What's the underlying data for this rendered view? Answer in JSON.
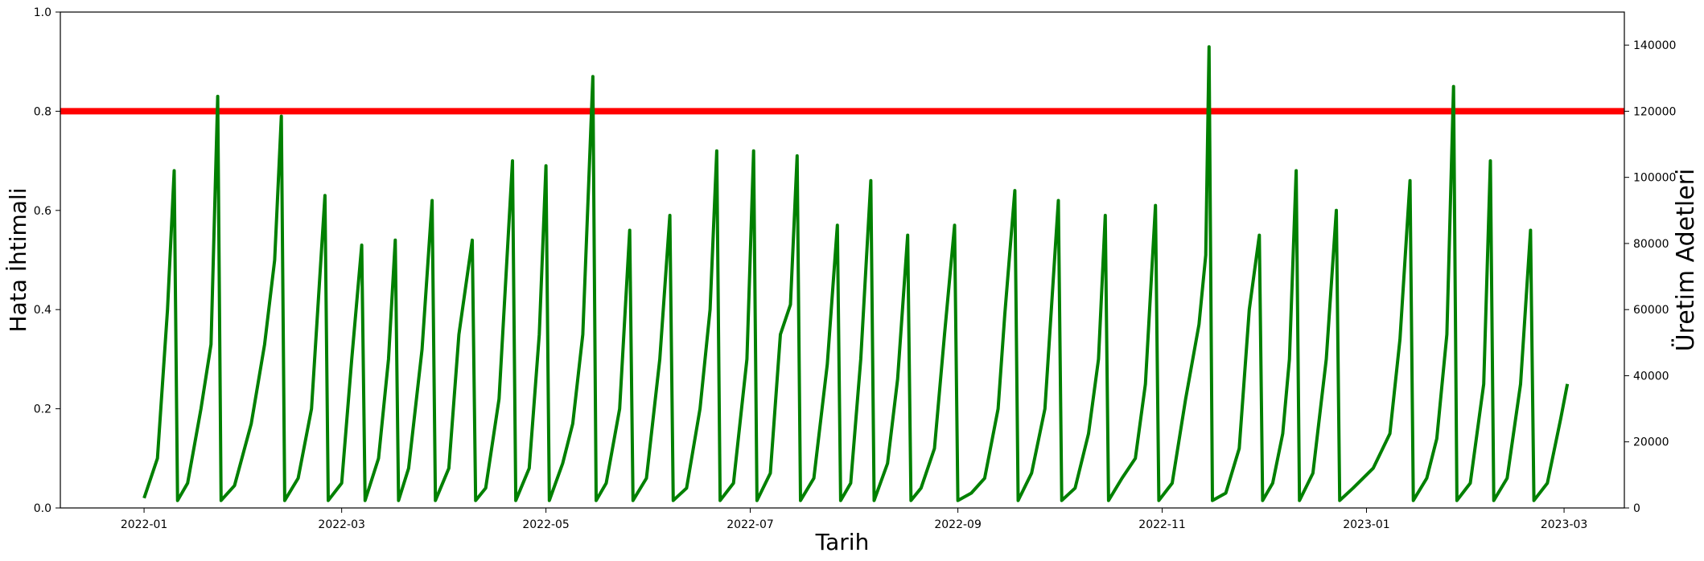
{
  "chart_data": {
    "type": "line",
    "xlabel": "Tarih",
    "ylabel": "Hata İhtimali",
    "y2label": "Üretim Adetleri",
    "xlim": [
      "2021-12-07",
      "2023-03-19"
    ],
    "ylim": [
      0,
      1.0
    ],
    "y2lim": [
      0,
      150000
    ],
    "xticks": [
      "2022-01",
      "2022-03",
      "2022-05",
      "2022-07",
      "2022-09",
      "2022-11",
      "2023-01",
      "2023-03"
    ],
    "yticks": [
      "0.0",
      "0.2",
      "0.4",
      "0.6",
      "0.8",
      "1.0"
    ],
    "y2ticks": [
      "0",
      "20000",
      "40000",
      "60000",
      "80000",
      "100000",
      "120000",
      "140000"
    ],
    "grid": false,
    "legend": "none",
    "threshold": {
      "value": 0.8,
      "color": "#ff0000"
    },
    "series": [
      {
        "color": "#008000",
        "points": [
          [
            "2022-01-01",
            0.02
          ],
          [
            "2022-01-05",
            0.1
          ],
          [
            "2022-01-08",
            0.4
          ],
          [
            "2022-01-10",
            0.68
          ],
          [
            "2022-01-11",
            0.015
          ],
          [
            "2022-01-14",
            0.05
          ],
          [
            "2022-01-18",
            0.2
          ],
          [
            "2022-01-21",
            0.33
          ],
          [
            "2022-01-23",
            0.83
          ],
          [
            "2022-01-24",
            0.015
          ],
          [
            "2022-01-28",
            0.045
          ],
          [
            "2022-02-02",
            0.17
          ],
          [
            "2022-02-06",
            0.33
          ],
          [
            "2022-02-09",
            0.5
          ],
          [
            "2022-02-11",
            0.79
          ],
          [
            "2022-02-12",
            0.015
          ],
          [
            "2022-02-16",
            0.06
          ],
          [
            "2022-02-20",
            0.2
          ],
          [
            "2022-02-24",
            0.63
          ],
          [
            "2022-02-25",
            0.015
          ],
          [
            "2022-03-01",
            0.05
          ],
          [
            "2022-03-04",
            0.3
          ],
          [
            "2022-03-07",
            0.53
          ],
          [
            "2022-03-08",
            0.015
          ],
          [
            "2022-03-12",
            0.1
          ],
          [
            "2022-03-15",
            0.3
          ],
          [
            "2022-03-17",
            0.54
          ],
          [
            "2022-03-18",
            0.015
          ],
          [
            "2022-03-21",
            0.08
          ],
          [
            "2022-03-25",
            0.32
          ],
          [
            "2022-03-28",
            0.62
          ],
          [
            "2022-03-29",
            0.015
          ],
          [
            "2022-04-02",
            0.08
          ],
          [
            "2022-04-05",
            0.35
          ],
          [
            "2022-04-09",
            0.54
          ],
          [
            "2022-04-10",
            0.015
          ],
          [
            "2022-04-13",
            0.04
          ],
          [
            "2022-04-17",
            0.22
          ],
          [
            "2022-04-21",
            0.7
          ],
          [
            "2022-04-22",
            0.015
          ],
          [
            "2022-04-26",
            0.08
          ],
          [
            "2022-04-29",
            0.35
          ],
          [
            "2022-05-01",
            0.69
          ],
          [
            "2022-05-02",
            0.015
          ],
          [
            "2022-05-06",
            0.09
          ],
          [
            "2022-05-09",
            0.17
          ],
          [
            "2022-05-12",
            0.35
          ],
          [
            "2022-05-15",
            0.87
          ],
          [
            "2022-05-16",
            0.015
          ],
          [
            "2022-05-19",
            0.05
          ],
          [
            "2022-05-23",
            0.2
          ],
          [
            "2022-05-26",
            0.56
          ],
          [
            "2022-05-27",
            0.015
          ],
          [
            "2022-05-31",
            0.06
          ],
          [
            "2022-06-04",
            0.3
          ],
          [
            "2022-06-07",
            0.59
          ],
          [
            "2022-06-08",
            0.015
          ],
          [
            "2022-06-12",
            0.04
          ],
          [
            "2022-06-16",
            0.2
          ],
          [
            "2022-06-19",
            0.4
          ],
          [
            "2022-06-21",
            0.72
          ],
          [
            "2022-06-22",
            0.015
          ],
          [
            "2022-06-26",
            0.05
          ],
          [
            "2022-06-30",
            0.3
          ],
          [
            "2022-07-02",
            0.72
          ],
          [
            "2022-07-03",
            0.015
          ],
          [
            "2022-07-07",
            0.07
          ],
          [
            "2022-07-10",
            0.35
          ],
          [
            "2022-07-13",
            0.41
          ],
          [
            "2022-07-15",
            0.71
          ],
          [
            "2022-07-16",
            0.015
          ],
          [
            "2022-07-20",
            0.06
          ],
          [
            "2022-07-24",
            0.29
          ],
          [
            "2022-07-27",
            0.57
          ],
          [
            "2022-07-28",
            0.015
          ],
          [
            "2022-07-31",
            0.05
          ],
          [
            "2022-08-03",
            0.3
          ],
          [
            "2022-08-06",
            0.66
          ],
          [
            "2022-08-07",
            0.015
          ],
          [
            "2022-08-11",
            0.09
          ],
          [
            "2022-08-14",
            0.26
          ],
          [
            "2022-08-17",
            0.55
          ],
          [
            "2022-08-18",
            0.015
          ],
          [
            "2022-08-21",
            0.04
          ],
          [
            "2022-08-25",
            0.12
          ],
          [
            "2022-08-28",
            0.35
          ],
          [
            "2022-08-31",
            0.57
          ],
          [
            "2022-09-01",
            0.015
          ],
          [
            "2022-09-05",
            0.03
          ],
          [
            "2022-09-09",
            0.06
          ],
          [
            "2022-09-13",
            0.2
          ],
          [
            "2022-09-15",
            0.39
          ],
          [
            "2022-09-18",
            0.64
          ],
          [
            "2022-09-19",
            0.015
          ],
          [
            "2022-09-23",
            0.07
          ],
          [
            "2022-09-27",
            0.2
          ],
          [
            "2022-10-01",
            0.62
          ],
          [
            "2022-10-02",
            0.015
          ],
          [
            "2022-10-06",
            0.04
          ],
          [
            "2022-10-10",
            0.15
          ],
          [
            "2022-10-13",
            0.3
          ],
          [
            "2022-10-15",
            0.59
          ],
          [
            "2022-10-16",
            0.015
          ],
          [
            "2022-10-20",
            0.06
          ],
          [
            "2022-10-24",
            0.1
          ],
          [
            "2022-10-27",
            0.25
          ],
          [
            "2022-10-30",
            0.61
          ],
          [
            "2022-10-31",
            0.015
          ],
          [
            "2022-11-04",
            0.05
          ],
          [
            "2022-11-08",
            0.22
          ],
          [
            "2022-11-12",
            0.37
          ],
          [
            "2022-11-14",
            0.51
          ],
          [
            "2022-11-15",
            0.93
          ],
          [
            "2022-11-16",
            0.015
          ],
          [
            "2022-11-20",
            0.03
          ],
          [
            "2022-11-24",
            0.12
          ],
          [
            "2022-11-27",
            0.4
          ],
          [
            "2022-11-30",
            0.55
          ],
          [
            "2022-12-01",
            0.015
          ],
          [
            "2022-12-04",
            0.05
          ],
          [
            "2022-12-07",
            0.15
          ],
          [
            "2022-12-09",
            0.3
          ],
          [
            "2022-12-11",
            0.68
          ],
          [
            "2022-12-12",
            0.015
          ],
          [
            "2022-12-16",
            0.07
          ],
          [
            "2022-12-20",
            0.3
          ],
          [
            "2022-12-23",
            0.6
          ],
          [
            "2022-12-24",
            0.015
          ],
          [
            "2022-12-28",
            0.04
          ],
          [
            "2023-01-03",
            0.08
          ],
          [
            "2023-01-08",
            0.15
          ],
          [
            "2023-01-11",
            0.34
          ],
          [
            "2023-01-14",
            0.66
          ],
          [
            "2023-01-15",
            0.015
          ],
          [
            "2023-01-19",
            0.06
          ],
          [
            "2023-01-22",
            0.14
          ],
          [
            "2023-01-25",
            0.35
          ],
          [
            "2023-01-27",
            0.85
          ],
          [
            "2023-01-28",
            0.015
          ],
          [
            "2023-02-01",
            0.05
          ],
          [
            "2023-02-05",
            0.25
          ],
          [
            "2023-02-07",
            0.7
          ],
          [
            "2023-02-08",
            0.015
          ],
          [
            "2023-02-12",
            0.06
          ],
          [
            "2023-02-16",
            0.25
          ],
          [
            "2023-02-19",
            0.56
          ],
          [
            "2023-02-20",
            0.015
          ],
          [
            "2023-02-24",
            0.05
          ],
          [
            "2023-02-28",
            0.18
          ],
          [
            "2023-03-02",
            0.25
          ]
        ]
      }
    ]
  }
}
